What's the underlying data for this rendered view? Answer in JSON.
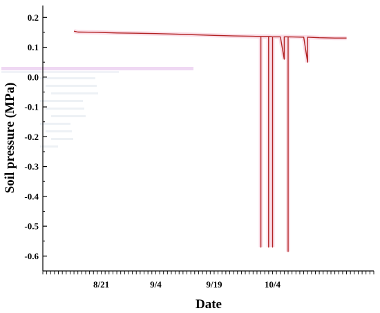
{
  "chart_data": {
    "type": "line",
    "title": "",
    "xlabel": "Date",
    "ylabel": "Soil pressure (MPa)",
    "x_ticks": [
      "8/21",
      "9/4",
      "9/19",
      "10/4"
    ],
    "y_ticks": [
      "0.2",
      "0.1",
      "0.0",
      "-0.1",
      "-0.2",
      "-0.3",
      "-0.4",
      "-0.5",
      "-0.6"
    ],
    "ylim": [
      -0.65,
      0.24
    ],
    "xlim": [
      "2023-08-06",
      "2023-10-30"
    ],
    "grid": false,
    "series": [
      {
        "color": "#b22222",
        "points": [
          [
            "2023-08-14",
            0.154
          ],
          [
            "2023-08-15",
            0.151
          ],
          [
            "2023-08-20",
            0.15
          ],
          [
            "2023-08-25",
            0.148
          ],
          [
            "2023-08-30",
            0.147
          ],
          [
            "2023-09-04",
            0.146
          ],
          [
            "2023-09-09",
            0.144
          ],
          [
            "2023-09-14",
            0.142
          ],
          [
            "2023-09-19",
            0.14
          ],
          [
            "2023-09-24",
            0.138
          ],
          [
            "2023-09-29",
            0.137
          ],
          [
            "2023-10-01",
            0.136
          ],
          [
            "2023-10-01",
            -0.57
          ],
          [
            "2023-10-01",
            0.136
          ],
          [
            "2023-10-03",
            0.136
          ],
          [
            "2023-10-03",
            -0.57
          ],
          [
            "2023-10-03",
            0.136
          ],
          [
            "2023-10-04",
            0.135
          ],
          [
            "2023-10-04",
            -0.57
          ],
          [
            "2023-10-04",
            0.135
          ],
          [
            "2023-10-06",
            0.135
          ],
          [
            "2023-10-07",
            0.06
          ],
          [
            "2023-10-07",
            0.135
          ],
          [
            "2023-10-08",
            0.135
          ],
          [
            "2023-10-08",
            -0.585
          ],
          [
            "2023-10-08",
            0.135
          ],
          [
            "2023-10-12",
            0.134
          ],
          [
            "2023-10-13",
            0.05
          ],
          [
            "2023-10-13",
            0.134
          ],
          [
            "2023-10-16",
            0.132
          ],
          [
            "2023-10-20",
            0.131
          ],
          [
            "2023-10-23",
            0.131
          ]
        ]
      }
    ]
  }
}
